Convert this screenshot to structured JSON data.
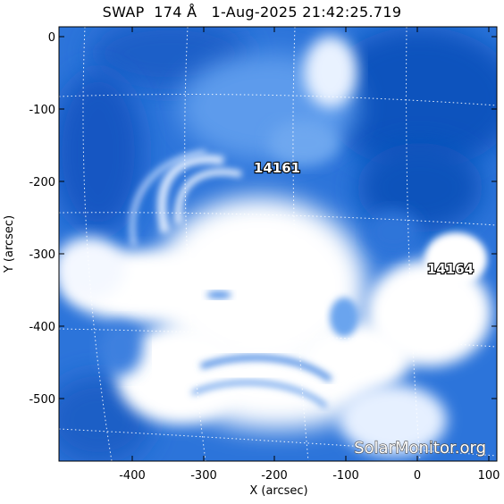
{
  "title": "SWAP  174 Å   1-Aug-2025 21:42:25.719",
  "xlabel": "X (arcsec)",
  "ylabel": "Y (arcsec)",
  "x_ticks": [
    "-400",
    "-300",
    "-200",
    "-100",
    "0",
    "100"
  ],
  "y_ticks": [
    "0",
    "-100",
    "-200",
    "-300",
    "-400",
    "-500"
  ],
  "regions": [
    {
      "label": "14161"
    },
    {
      "label": "14164"
    }
  ],
  "watermark": "SolarMonitor.org",
  "colors": {
    "deep_blue": "#0a4fb8",
    "mid_blue": "#3f86e6",
    "white": "#ffffff"
  }
}
